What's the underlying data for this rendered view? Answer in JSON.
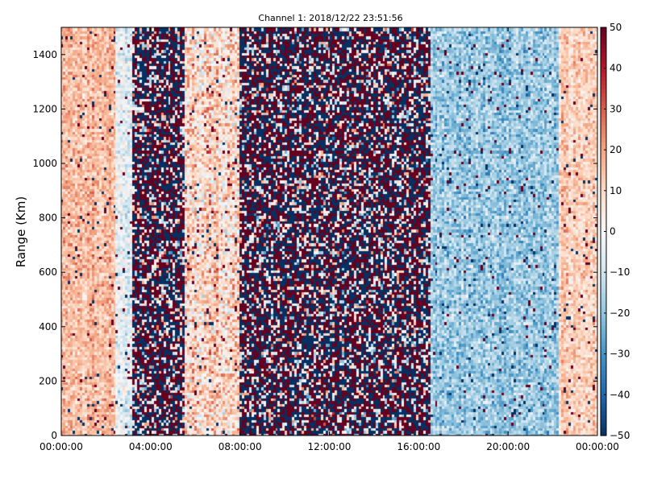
{
  "chart_data": {
    "type": "heatmap",
    "title": "Channel 1: 2018/12/22 23:51:56",
    "ylabel": "Range (Km)",
    "xlabel": "",
    "x_ticks": [
      "00:00:00",
      "04:00:00",
      "08:00:00",
      "12:00:00",
      "16:00:00",
      "20:00:00",
      "00:00:00"
    ],
    "x_tick_hours": [
      0,
      4,
      8,
      12,
      16,
      20,
      24
    ],
    "y_ticks": [
      "0",
      "200",
      "400",
      "600",
      "800",
      "1000",
      "1200",
      "1400"
    ],
    "y_tick_values": [
      0,
      200,
      400,
      600,
      800,
      1000,
      1200,
      1400
    ],
    "xlim_hours": [
      0,
      24
    ],
    "ylim": [
      0,
      1500
    ],
    "colorbar": {
      "colormap": "RdBu_r",
      "vmin": -50,
      "vmax": 50,
      "ticks": [
        "50",
        "40",
        "30",
        "20",
        "10",
        "0",
        "−10",
        "−20",
        "−30",
        "−40",
        "−50"
      ],
      "tick_values": [
        50,
        40,
        30,
        20,
        10,
        0,
        -10,
        -20,
        -30,
        -40,
        -50
      ]
    },
    "grid": false,
    "bands_approx": [
      {
        "from_hour": 0.0,
        "to_hour": 2.5,
        "mean_value": 15,
        "noise": 10
      },
      {
        "from_hour": 2.5,
        "to_hour": 3.2,
        "mean_value": -5,
        "noise": 12
      },
      {
        "from_hour": 3.2,
        "to_hour": 5.5,
        "mean_value": 0,
        "noise": 90
      },
      {
        "from_hour": 5.5,
        "to_hour": 8.0,
        "mean_value": 10,
        "noise": 18
      },
      {
        "from_hour": 8.0,
        "to_hour": 16.5,
        "mean_value": 0,
        "noise": 70
      },
      {
        "from_hour": 16.5,
        "to_hour": 22.3,
        "mean_value": -18,
        "noise": 12
      },
      {
        "from_hour": 22.3,
        "to_hour": 24.0,
        "mean_value": 12,
        "noise": 10
      }
    ]
  },
  "colors": {
    "low": "#053061",
    "mid": "#f7f7f7",
    "high": "#67001f"
  }
}
